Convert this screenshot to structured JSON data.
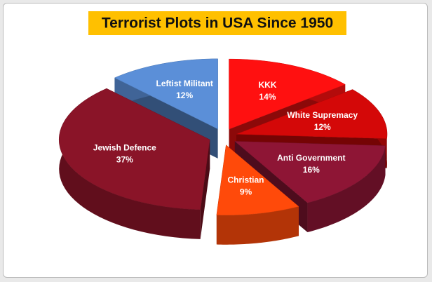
{
  "chart_data": {
    "type": "pie",
    "title": "Terrorist Plots in USA Since 1950",
    "categories": [
      "KKK",
      "White Supremacy",
      "Anti Government",
      "Christian",
      "Jewish Defence",
      "Leftist Militant"
    ],
    "values": [
      14,
      12,
      16,
      9,
      37,
      12
    ],
    "value_labels": [
      "14%",
      "12%",
      "16%",
      "9%",
      "37%",
      "12%"
    ],
    "colors": [
      "#ff1010",
      "#d40808",
      "#8e1535",
      "#ff4a0a",
      "#8a1428",
      "#5b8fd8"
    ]
  }
}
